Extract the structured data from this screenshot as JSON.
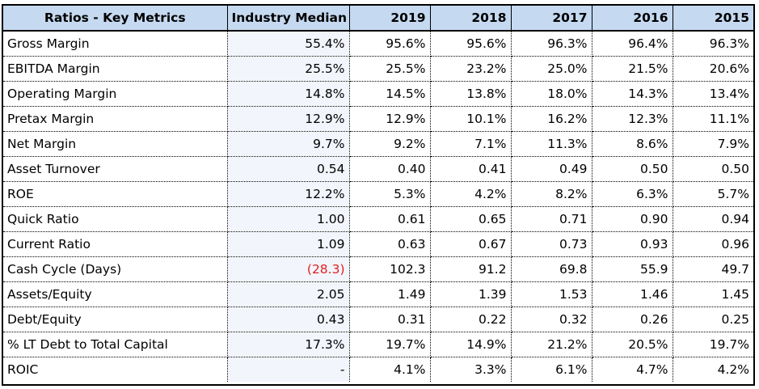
{
  "headers": {
    "metric": "Ratios - Key Metrics",
    "median": "Industry Median",
    "years": [
      "2019",
      "2018",
      "2017",
      "2016",
      "2015"
    ]
  },
  "rows": [
    {
      "label": "Gross Margin",
      "median": "55.4%",
      "values": [
        "95.6%",
        "95.6%",
        "96.3%",
        "96.4%",
        "96.3%"
      ]
    },
    {
      "label": "EBITDA Margin",
      "median": "25.5%",
      "values": [
        "25.5%",
        "23.2%",
        "25.0%",
        "21.5%",
        "20.6%"
      ]
    },
    {
      "label": "Operating Margin",
      "median": "14.8%",
      "values": [
        "14.5%",
        "13.8%",
        "18.0%",
        "14.3%",
        "13.4%"
      ]
    },
    {
      "label": "Pretax Margin",
      "median": "12.9%",
      "values": [
        "12.9%",
        "10.1%",
        "16.2%",
        "12.3%",
        "11.1%"
      ]
    },
    {
      "label": "Net Margin",
      "median": "9.7%",
      "values": [
        "9.2%",
        "7.1%",
        "11.3%",
        "8.6%",
        "7.9%"
      ]
    },
    {
      "label": "Asset Turnover",
      "median": "0.54",
      "values": [
        "0.40",
        "0.41",
        "0.49",
        "0.50",
        "0.50"
      ]
    },
    {
      "label": "ROE",
      "median": "12.2%",
      "values": [
        "5.3%",
        "4.2%",
        "8.2%",
        "6.3%",
        "5.7%"
      ]
    },
    {
      "label": "Quick Ratio",
      "median": "1.00",
      "values": [
        "0.61",
        "0.65",
        "0.71",
        "0.90",
        "0.94"
      ]
    },
    {
      "label": "Current Ratio",
      "median": "1.09",
      "values": [
        "0.63",
        "0.67",
        "0.73",
        "0.93",
        "0.96"
      ]
    },
    {
      "label": "Cash Cycle (Days)",
      "median": "(28.3)",
      "median_negative": true,
      "values": [
        "102.3",
        "91.2",
        "69.8",
        "55.9",
        "49.7"
      ]
    },
    {
      "label": "Assets/Equity",
      "median": "2.05",
      "values": [
        "1.49",
        "1.39",
        "1.53",
        "1.46",
        "1.45"
      ]
    },
    {
      "label": "Debt/Equity",
      "median": "0.43",
      "values": [
        "0.31",
        "0.22",
        "0.32",
        "0.26",
        "0.25"
      ]
    },
    {
      "label": "% LT Debt to Total Capital",
      "median": "17.3%",
      "values": [
        "19.7%",
        "14.9%",
        "21.2%",
        "20.5%",
        "19.7%"
      ]
    },
    {
      "label": "ROIC",
      "median": "-",
      "values": [
        "4.1%",
        "3.3%",
        "6.1%",
        "4.7%",
        "4.2%"
      ]
    }
  ],
  "colors": {
    "header_bg": "#c5d9f1",
    "median_bg": "#f2f5fb",
    "negative_text": "#e02020"
  }
}
